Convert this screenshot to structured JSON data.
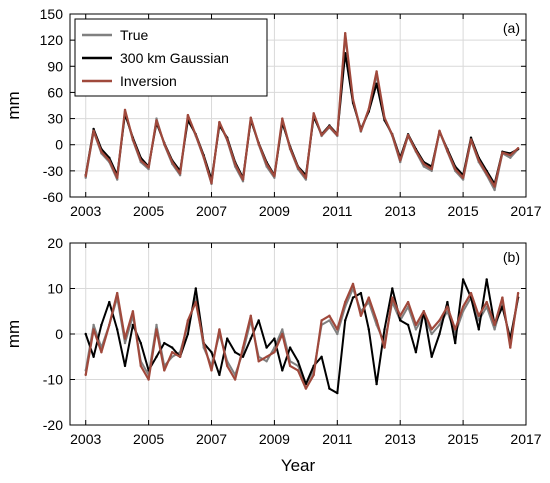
{
  "chart_data": [
    {
      "type": "line",
      "panel_label": "(a)",
      "xlabel": "",
      "ylabel": "mm",
      "xlim": [
        2002.5,
        2017
      ],
      "ylim": [
        -60,
        150
      ],
      "xticks": [
        2003,
        2005,
        2007,
        2009,
        2011,
        2013,
        2015,
        2017
      ],
      "yticks": [
        -60,
        -30,
        0,
        30,
        60,
        90,
        120,
        150
      ],
      "grid": true,
      "legend_position": "top-left",
      "series": [
        {
          "name": "True",
          "color": "#808080",
          "x": [
            2003.0,
            2003.25,
            2003.5,
            2003.75,
            2004.0,
            2004.25,
            2004.5,
            2004.75,
            2005.0,
            2005.25,
            2005.5,
            2005.75,
            2006.0,
            2006.25,
            2006.5,
            2006.75,
            2007.0,
            2007.25,
            2007.5,
            2007.75,
            2008.0,
            2008.25,
            2008.5,
            2008.75,
            2009.0,
            2009.25,
            2009.5,
            2009.75,
            2010.0,
            2010.25,
            2010.5,
            2010.75,
            2011.0,
            2011.25,
            2011.5,
            2011.75,
            2012.0,
            2012.25,
            2012.5,
            2012.75,
            2013.0,
            2013.25,
            2013.5,
            2013.75,
            2014.0,
            2014.25,
            2014.5,
            2014.75,
            2015.0,
            2015.25,
            2015.5,
            2015.75,
            2016.0,
            2016.25,
            2016.5,
            2016.75
          ],
          "y": [
            -38,
            15,
            -10,
            -20,
            -40,
            38,
            5,
            -20,
            -28,
            30,
            0,
            -22,
            -35,
            32,
            10,
            -15,
            -45,
            25,
            5,
            -25,
            -42,
            30,
            0,
            -25,
            -38,
            28,
            -5,
            -28,
            -40,
            35,
            10,
            20,
            10,
            125,
            50,
            15,
            40,
            80,
            30,
            10,
            -20,
            10,
            -8,
            -25,
            -30,
            15,
            -8,
            -30,
            -40,
            5,
            -20,
            -35,
            -52,
            -10,
            -15,
            -5
          ]
        },
        {
          "name": "300 km Gaussian",
          "color": "#000000",
          "x": [
            2003.0,
            2003.25,
            2003.5,
            2003.75,
            2004.0,
            2004.25,
            2004.5,
            2004.75,
            2005.0,
            2005.25,
            2005.5,
            2005.75,
            2006.0,
            2006.25,
            2006.5,
            2006.75,
            2007.0,
            2007.25,
            2007.5,
            2007.75,
            2008.0,
            2008.25,
            2008.5,
            2008.75,
            2009.0,
            2009.25,
            2009.5,
            2009.75,
            2010.0,
            2010.25,
            2010.5,
            2010.75,
            2011.0,
            2011.25,
            2011.5,
            2011.75,
            2012.0,
            2012.25,
            2012.5,
            2012.75,
            2013.0,
            2013.25,
            2013.5,
            2013.75,
            2014.0,
            2014.25,
            2014.5,
            2014.75,
            2015.0,
            2015.25,
            2015.5,
            2015.75,
            2016.0,
            2016.25,
            2016.5,
            2016.75
          ],
          "y": [
            -35,
            18,
            -5,
            -15,
            -35,
            35,
            8,
            -15,
            -25,
            25,
            2,
            -18,
            -30,
            28,
            12,
            -12,
            -40,
            22,
            8,
            -20,
            -38,
            28,
            2,
            -20,
            -35,
            25,
            -2,
            -25,
            -35,
            32,
            12,
            22,
            12,
            105,
            48,
            18,
            38,
            70,
            28,
            12,
            -15,
            12,
            -5,
            -20,
            -25,
            15,
            -5,
            -25,
            -35,
            8,
            -15,
            -30,
            -45,
            -8,
            -10,
            -5
          ]
        },
        {
          "name": "Inversion",
          "color": "#a0493c",
          "x": [
            2003.0,
            2003.25,
            2003.5,
            2003.75,
            2004.0,
            2004.25,
            2004.5,
            2004.75,
            2005.0,
            2005.25,
            2005.5,
            2005.75,
            2006.0,
            2006.25,
            2006.5,
            2006.75,
            2007.0,
            2007.25,
            2007.5,
            2007.75,
            2008.0,
            2008.25,
            2008.5,
            2008.75,
            2009.0,
            2009.25,
            2009.5,
            2009.75,
            2010.0,
            2010.25,
            2010.5,
            2010.75,
            2011.0,
            2011.25,
            2011.5,
            2011.75,
            2012.0,
            2012.25,
            2012.5,
            2012.75,
            2013.0,
            2013.25,
            2013.5,
            2013.75,
            2014.0,
            2014.25,
            2014.5,
            2014.75,
            2015.0,
            2015.25,
            2015.5,
            2015.75,
            2016.0,
            2016.25,
            2016.5,
            2016.75
          ],
          "y": [
            -36,
            16,
            -8,
            -18,
            -38,
            40,
            6,
            -18,
            -26,
            28,
            1,
            -20,
            -33,
            34,
            11,
            -14,
            -44,
            26,
            6,
            -22,
            -40,
            31,
            1,
            -22,
            -36,
            30,
            -4,
            -26,
            -38,
            36,
            11,
            21,
            11,
            128,
            52,
            16,
            41,
            84,
            31,
            11,
            -18,
            11,
            -7,
            -22,
            -28,
            16,
            -7,
            -28,
            -38,
            6,
            -18,
            -33,
            -48,
            -9,
            -12,
            -4
          ]
        }
      ]
    },
    {
      "type": "line",
      "panel_label": "(b)",
      "xlabel": "Year",
      "ylabel": "mm",
      "xlim": [
        2002.5,
        2017
      ],
      "ylim": [
        -20,
        20
      ],
      "xticks": [
        2003,
        2005,
        2007,
        2009,
        2011,
        2013,
        2015,
        2017
      ],
      "yticks": [
        -20,
        -10,
        0,
        10,
        20
      ],
      "grid": true,
      "series": [
        {
          "name": "True",
          "color": "#808080",
          "x": [
            2003.0,
            2003.25,
            2003.5,
            2003.75,
            2004.0,
            2004.25,
            2004.5,
            2004.75,
            2005.0,
            2005.25,
            2005.5,
            2005.75,
            2006.0,
            2006.25,
            2006.5,
            2006.75,
            2007.0,
            2007.25,
            2007.5,
            2007.75,
            2008.0,
            2008.25,
            2008.5,
            2008.75,
            2009.0,
            2009.25,
            2009.5,
            2009.75,
            2010.0,
            2010.25,
            2010.5,
            2010.75,
            2011.0,
            2011.25,
            2011.5,
            2011.75,
            2012.0,
            2012.25,
            2012.5,
            2012.75,
            2013.0,
            2013.25,
            2013.5,
            2013.75,
            2014.0,
            2014.25,
            2014.5,
            2014.75,
            2015.0,
            2015.25,
            2015.5,
            2015.75,
            2016.0,
            2016.25,
            2016.5,
            2016.75
          ],
          "y": [
            -8,
            2,
            -3,
            2,
            8,
            -2,
            4,
            -6,
            -9,
            2,
            -7,
            -5,
            -4,
            2,
            8,
            -3,
            -7,
            0,
            -6,
            -9,
            -4,
            3,
            -5,
            -6,
            -3,
            1,
            -6,
            -7,
            -11,
            -8,
            2,
            3,
            0,
            6,
            10,
            5,
            7,
            2,
            -2,
            7,
            3,
            6,
            1,
            4,
            0,
            2,
            5,
            0,
            5,
            8,
            3,
            6,
            1,
            7,
            -2,
            8
          ]
        },
        {
          "name": "300 km Gaussian",
          "color": "#000000",
          "x": [
            2003.0,
            2003.25,
            2003.5,
            2003.75,
            2004.0,
            2004.25,
            2004.5,
            2004.75,
            2005.0,
            2005.25,
            2005.5,
            2005.75,
            2006.0,
            2006.25,
            2006.5,
            2006.75,
            2007.0,
            2007.25,
            2007.5,
            2007.75,
            2008.0,
            2008.25,
            2008.5,
            2008.75,
            2009.0,
            2009.25,
            2009.5,
            2009.75,
            2010.0,
            2010.25,
            2010.5,
            2010.75,
            2011.0,
            2011.25,
            2011.5,
            2011.75,
            2012.0,
            2012.25,
            2012.5,
            2012.75,
            2013.0,
            2013.25,
            2013.5,
            2013.75,
            2014.0,
            2014.25,
            2014.5,
            2014.75,
            2015.0,
            2015.25,
            2015.5,
            2015.75,
            2016.0,
            2016.25,
            2016.5,
            2016.75
          ],
          "y": [
            0,
            -5,
            2,
            7,
            1,
            -7,
            2,
            -2,
            -8,
            -5,
            -2,
            -3,
            -5,
            0,
            10,
            -2,
            -4,
            -9,
            -1,
            -4,
            -5,
            -1,
            3,
            -3,
            -1,
            -8,
            -3,
            -6,
            -11,
            -7,
            -5,
            -12,
            -13,
            3,
            8,
            9,
            1,
            -11,
            1,
            10,
            3,
            2,
            -4,
            5,
            -5,
            0,
            7,
            -2,
            12,
            8,
            1,
            12,
            2,
            6,
            -1,
            8
          ]
        },
        {
          "name": "Inversion",
          "color": "#a0493c",
          "x": [
            2003.0,
            2003.25,
            2003.5,
            2003.75,
            2004.0,
            2004.25,
            2004.5,
            2004.75,
            2005.0,
            2005.25,
            2005.5,
            2005.75,
            2006.0,
            2006.25,
            2006.5,
            2006.75,
            2007.0,
            2007.25,
            2007.5,
            2007.75,
            2008.0,
            2008.25,
            2008.5,
            2008.75,
            2009.0,
            2009.25,
            2009.5,
            2009.75,
            2010.0,
            2010.25,
            2010.5,
            2010.75,
            2011.0,
            2011.25,
            2011.5,
            2011.75,
            2012.0,
            2012.25,
            2012.5,
            2012.75,
            2013.0,
            2013.25,
            2013.5,
            2013.75,
            2014.0,
            2014.25,
            2014.5,
            2014.75,
            2015.0,
            2015.25,
            2015.5,
            2015.75,
            2016.0,
            2016.25,
            2016.5,
            2016.75
          ],
          "y": [
            -9,
            1,
            -4,
            2,
            9,
            -1,
            5,
            -7,
            -10,
            1,
            -8,
            -4,
            -5,
            3,
            7,
            -2,
            -8,
            1,
            -7,
            -10,
            -3,
            4,
            -6,
            -5,
            -4,
            0,
            -7,
            -8,
            -12,
            -9,
            3,
            4,
            1,
            7,
            11,
            4,
            8,
            3,
            -3,
            8,
            4,
            7,
            2,
            5,
            1,
            3,
            6,
            1,
            6,
            9,
            4,
            7,
            2,
            8,
            -3,
            9
          ]
        }
      ]
    }
  ]
}
